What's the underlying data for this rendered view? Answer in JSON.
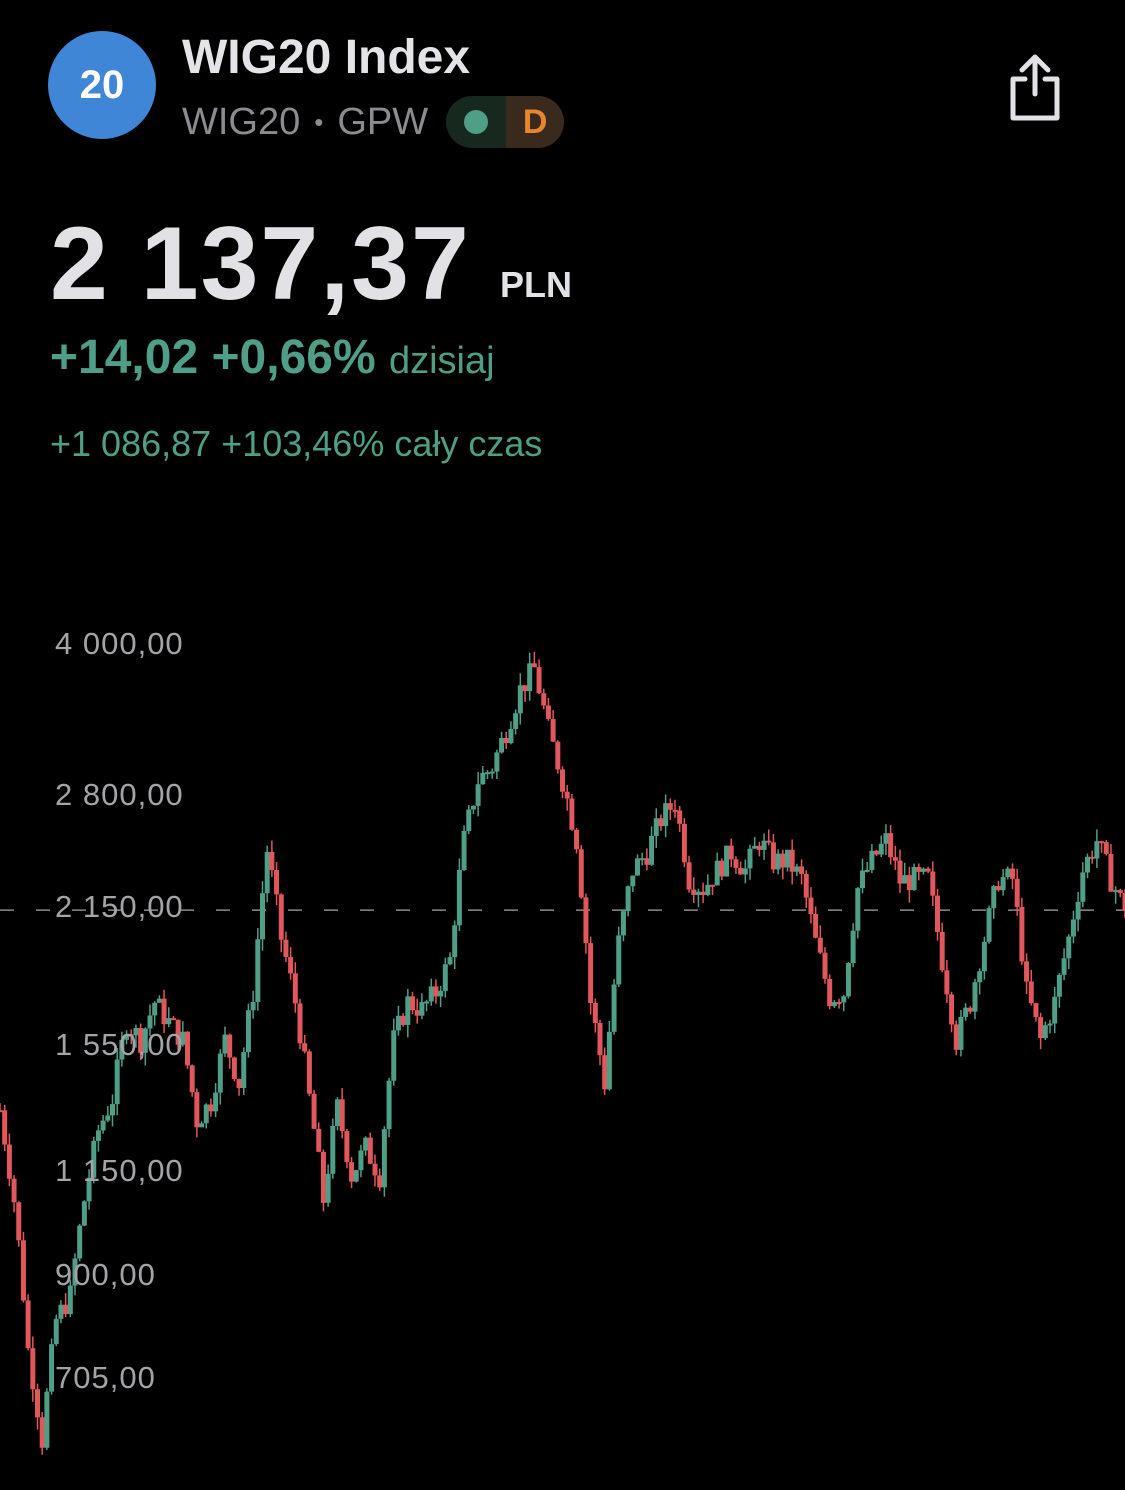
{
  "header": {
    "logo_text": "20",
    "title": "WIG20 Index",
    "ticker": "WIG20",
    "separator": "•",
    "exchange": "GPW",
    "status_dot_color": "#4f9e87",
    "interval_badge": "D",
    "share_icon": "share-icon"
  },
  "quote": {
    "price": "2 137,37",
    "currency": "PLN",
    "day_change": "+14,02",
    "day_change_pct": "+0,66%",
    "day_label": "dzisiaj",
    "all_change": "+1 086,87",
    "all_change_pct": "+103,46%",
    "all_label": "cały czas"
  },
  "chart_data": {
    "type": "candlestick",
    "y_scale": "log",
    "ylim": [
      560,
      4200
    ],
    "y_tick_labels": [
      "4 000,00",
      "2 800,00",
      "2 150,00",
      "1 550,00",
      "1 150,00",
      "900,00",
      "705,00"
    ],
    "y_ticks": [
      4000,
      2800,
      2150,
      1550,
      1150,
      900,
      705
    ],
    "current_price_line": 2137.37,
    "colors": {
      "up": "#4f9e87",
      "down": "#e0575c",
      "grid_line": "#8a8a8a"
    },
    "closes": [
      1332,
      1077,
      756,
      611,
      811,
      860,
      1077,
      1270,
      1370,
      1640,
      1572,
      1720,
      1640,
      1572,
      1300,
      1360,
      1572,
      1420,
      1760,
      2465,
      2000,
      1720,
      1370,
      1077,
      1340,
      1142,
      1219,
      1142,
      1572,
      1720,
      1690,
      1760,
      1900,
      2522,
      2905,
      3000,
      3270,
      3600,
      3780,
      3270,
      2905,
      2522,
      1720,
      1420,
      1980,
      2350,
      2450,
      2650,
      2760,
      2300,
      2250,
      2350,
      2450,
      2350,
      2520,
      2400,
      2400,
      2300,
      1980,
      1740,
      1760,
      2250,
      2400,
      2520,
      2290,
      2300,
      2300,
      1900,
      1572,
      1720,
      2000,
      2300,
      2300,
      1760,
      1572,
      1720,
      2000,
      2350,
      2520,
      2300,
      2137
    ]
  }
}
